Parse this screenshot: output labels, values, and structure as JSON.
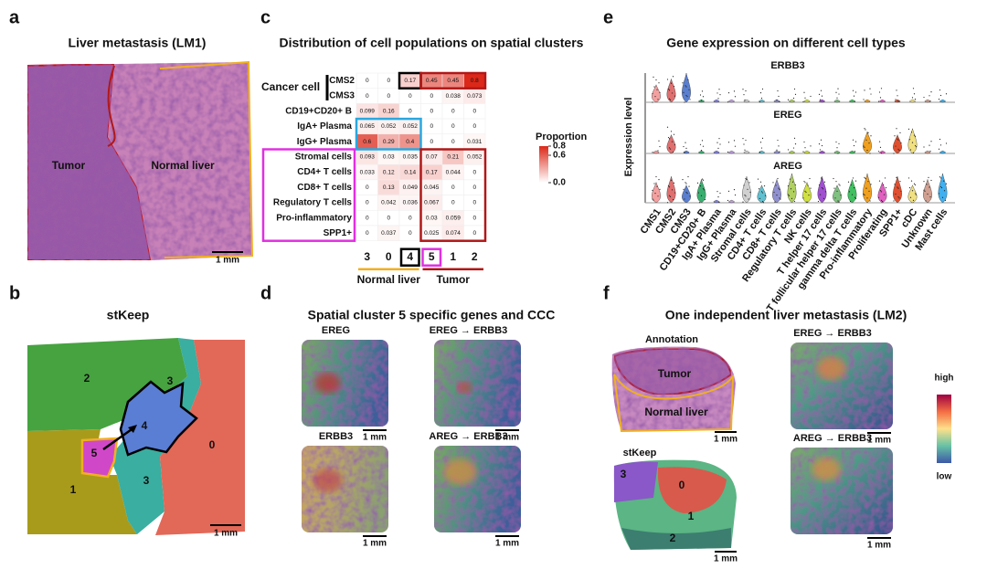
{
  "panel_a": {
    "label": "a",
    "title": "Liver metastasis (LM1)",
    "regions": [
      "Tumor",
      "Normal liver"
    ],
    "scale_bar": "1 mm"
  },
  "panel_b": {
    "label": "b",
    "title": "stKeep",
    "clusters": [
      "2",
      "3",
      "4",
      "0",
      "5",
      "1",
      "3"
    ],
    "scale_bar": "1 mm"
  },
  "panel_c": {
    "label": "c",
    "title": "Distribution of cell populations on spatial clusters",
    "group_label": "Cancer cell",
    "heatmap": {
      "rows": [
        "CMS2",
        "CMS3",
        "CD19+CD20+ B",
        "IgA+ Plasma",
        "IgG+ Plasma",
        "Stromal cells",
        "CD4+ T cells",
        "CD8+ T cells",
        "Regulatory T cells",
        "Pro-inflammatory",
        "SPP1+"
      ],
      "columns": [
        "3",
        "0",
        "4",
        "5",
        "1",
        "2"
      ],
      "values": [
        [
          0,
          0,
          0.17,
          0.45,
          0.45,
          0.8
        ],
        [
          0,
          0,
          0,
          0,
          0.038,
          0.073
        ],
        [
          0.099,
          0.16,
          0,
          0,
          0,
          0
        ],
        [
          0.065,
          0.052,
          0.052,
          0,
          0,
          0
        ],
        [
          0.6,
          0.29,
          0.4,
          0,
          0,
          0.031
        ],
        [
          0.093,
          0.03,
          0.035,
          0.07,
          0.21,
          0.052
        ],
        [
          0.033,
          0.12,
          0.14,
          0.17,
          0.044,
          0
        ],
        [
          0,
          0.13,
          0.049,
          0.045,
          0,
          0
        ],
        [
          0,
          0.042,
          0.036,
          0.067,
          0,
          0
        ],
        [
          0,
          0,
          0,
          0.03,
          0.059,
          0
        ],
        [
          0,
          0.037,
          0,
          0.025,
          0.074,
          0
        ]
      ]
    },
    "column_groups": [
      "Normal liver",
      "Tumor"
    ],
    "colorbar": {
      "label": "Proportion",
      "lim": [
        0,
        0.8
      ],
      "ticks": [
        0.8,
        0.6,
        {
          "value": 0,
          "label": "0.0"
        }
      ]
    }
  },
  "panel_d": {
    "label": "d",
    "title": "Spatial cluster 5 specific genes and CCC",
    "images": [
      "EREG",
      "EREG → ERBB3",
      "ERBB3",
      "AREG → ERBB3"
    ],
    "scale_bars": [
      "1 mm",
      "1 mm",
      "1 mm",
      "1 mm"
    ]
  },
  "panel_e": {
    "label": "e",
    "title": "Gene expression on different cell types",
    "y_label": "Expression level",
    "genes": [
      "ERBB3",
      "EREG",
      "AREG"
    ],
    "cell_types": [
      "CMS1",
      "CMS2",
      "CMS3",
      "CD19+CD20+ B",
      "IgA+ Plasma",
      "IgG+ Plasma",
      "Stromal cells",
      "CD4+ T cells",
      "CD8+ T cells",
      "Regulatory T cells",
      "NK cells",
      "T helper 17 cells",
      "T follicular helper 17 cells",
      "gamma delta T cells",
      "Pro-inflammatory",
      "Proliferating",
      "SPP1+",
      "cDC",
      "Unknown",
      "Mast cells"
    ]
  },
  "panel_f": {
    "label": "f",
    "title": "One independent liver metastasis (LM2)",
    "annotation": {
      "title": "Annotation",
      "regions": [
        "Tumor",
        "Normal liver"
      ]
    },
    "stkeep": {
      "title": "stKeep",
      "clusters": [
        "3",
        "0",
        "1",
        "2"
      ]
    },
    "images": [
      "EREG → ERBB3",
      "AREG → ERBB3"
    ],
    "scale_bars": [
      "1 mm",
      "1 mm",
      "1 mm",
      "1 mm"
    ],
    "colorbar": {
      "high": "high",
      "low": "low"
    }
  }
}
